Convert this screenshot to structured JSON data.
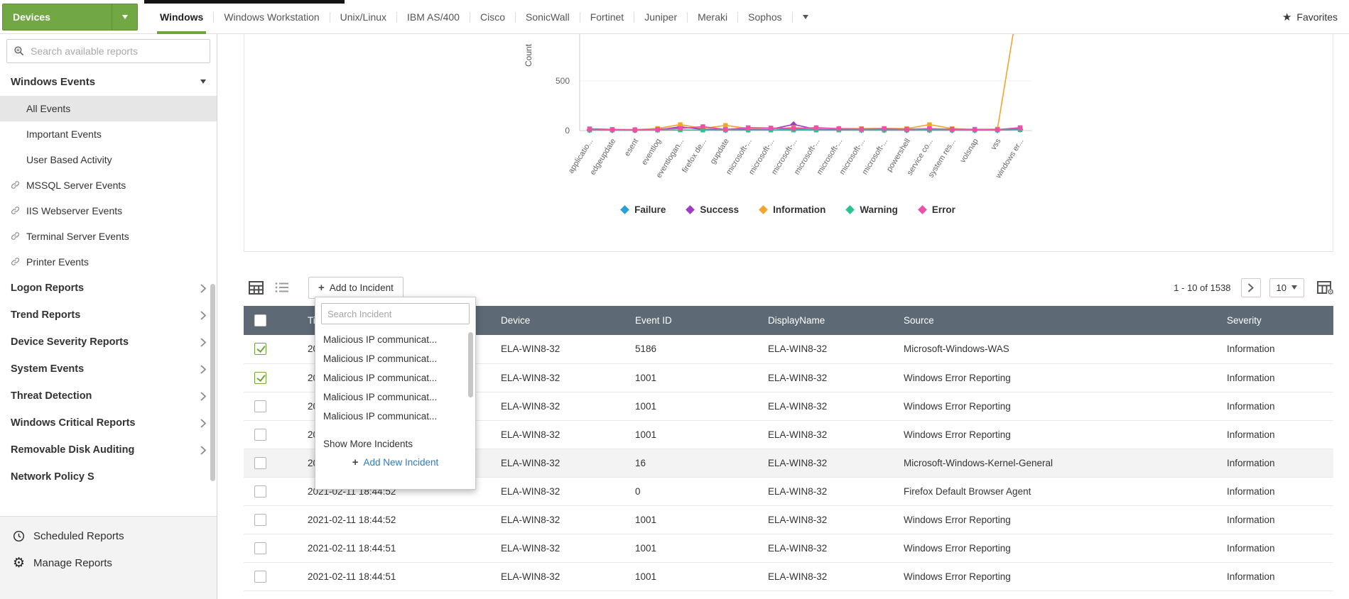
{
  "topbar": {
    "devices_button": "Devices",
    "tabs": [
      "Windows",
      "Windows Workstation",
      "Unix/Linux",
      "IBM AS/400",
      "Cisco",
      "SonicWall",
      "Fortinet",
      "Juniper",
      "Meraki",
      "Sophos"
    ],
    "active_tab": "Windows",
    "favorites": "Favorites"
  },
  "sidebar": {
    "search_placeholder": "Search available reports",
    "section_title": "Windows Events",
    "items": [
      {
        "label": "All Events",
        "selected": true,
        "linked": false
      },
      {
        "label": "Important Events",
        "selected": false,
        "linked": false
      },
      {
        "label": "User Based Activity",
        "selected": false,
        "linked": false
      },
      {
        "label": "MSSQL Server Events",
        "selected": false,
        "linked": true
      },
      {
        "label": "IIS Webserver Events",
        "selected": false,
        "linked": true
      },
      {
        "label": "Terminal Server Events",
        "selected": false,
        "linked": true
      },
      {
        "label": "Printer Events",
        "selected": false,
        "linked": true
      }
    ],
    "groups": [
      {
        "label": "Logon Reports"
      },
      {
        "label": "Trend Reports"
      },
      {
        "label": "Device Severity Reports"
      },
      {
        "label": "System Events"
      },
      {
        "label": "Threat Detection"
      },
      {
        "label": "Windows Critical Reports"
      },
      {
        "label": "Removable Disk Auditing"
      },
      {
        "label": "Network Policy S"
      }
    ],
    "footer": {
      "scheduled": "Scheduled Reports",
      "manage": "Manage Reports"
    }
  },
  "chart_data": {
    "type": "line",
    "title": "",
    "xlabel": "",
    "ylabel": "Count",
    "yticks": [
      0,
      500
    ],
    "grid": false,
    "legend_position": "bottom",
    "categories": [
      "applicatio...",
      "edgeupdate",
      "esent",
      "eventlog",
      "eventlogan...",
      "firefox de...",
      "gupdate",
      "microsoft-...",
      "microsoft-...",
      "microsoft-...",
      "microsoft-...",
      "microsoft-...",
      "microsoft-...",
      "microsoft-...",
      "powershell",
      "service co...",
      "system res...",
      "volsnap",
      "vss",
      "windows er..."
    ],
    "series": [
      {
        "name": "Failure",
        "color": "#2a9fd8",
        "values": [
          18,
          12,
          10,
          14,
          26,
          30,
          12,
          16,
          20,
          12,
          14,
          10,
          12,
          16,
          10,
          12,
          10,
          14,
          10,
          22
        ]
      },
      {
        "name": "Success",
        "color": "#9d3cc4",
        "values": [
          6,
          5,
          5,
          8,
          38,
          12,
          6,
          10,
          14,
          62,
          12,
          16,
          6,
          6,
          5,
          6,
          5,
          5,
          5,
          12
        ]
      },
      {
        "name": "Information",
        "color": "#f2a52d",
        "values": [
          12,
          10,
          10,
          22,
          60,
          22,
          52,
          22,
          20,
          30,
          22,
          20,
          20,
          22,
          20,
          60,
          20,
          12,
          16,
          1400
        ]
      },
      {
        "name": "Warning",
        "color": "#2bc490",
        "values": [
          5,
          5,
          4,
          5,
          6,
          5,
          5,
          5,
          5,
          5,
          5,
          5,
          5,
          5,
          5,
          5,
          5,
          5,
          5,
          8
        ]
      },
      {
        "name": "Error",
        "color": "#ef4fa6",
        "values": [
          16,
          10,
          6,
          12,
          22,
          40,
          12,
          30,
          26,
          20,
          30,
          20,
          16,
          20,
          14,
          20,
          14,
          10,
          10,
          30
        ]
      }
    ]
  },
  "toolbar": {
    "add_to_incident": "Add to Incident",
    "pagination": "1 - 10 of 1538",
    "page_size": "10"
  },
  "incident_dropdown": {
    "search_placeholder": "Search Incident",
    "items": [
      "Malicious IP communicat...",
      "Malicious IP communicat...",
      "Malicious IP communicat...",
      "Malicious IP communicat...",
      "Malicious IP communicat..."
    ],
    "show_more": "Show More Incidents",
    "add_new": "Add New Incident"
  },
  "table": {
    "columns": [
      "Time",
      "Device",
      "Event ID",
      "DisplayName",
      "Source",
      "Severity"
    ],
    "rows": [
      {
        "time": "2021-02-11 18:44:53",
        "device": "ELA-WIN8-32",
        "event_id": "5186",
        "display_name": "ELA-WIN8-32",
        "source": "Microsoft-Windows-WAS",
        "severity": "Information",
        "checked": true,
        "highlight": false
      },
      {
        "time": "2021-02-11 18:44:53",
        "device": "ELA-WIN8-32",
        "event_id": "1001",
        "display_name": "ELA-WIN8-32",
        "source": "Windows Error Reporting",
        "severity": "Information",
        "checked": true,
        "highlight": false
      },
      {
        "time": "2021-02-11 18:44:52",
        "device": "ELA-WIN8-32",
        "event_id": "1001",
        "display_name": "ELA-WIN8-32",
        "source": "Windows Error Reporting",
        "severity": "Information",
        "checked": false,
        "highlight": false
      },
      {
        "time": "2021-02-11 18:44:52",
        "device": "ELA-WIN8-32",
        "event_id": "1001",
        "display_name": "ELA-WIN8-32",
        "source": "Windows Error Reporting",
        "severity": "Information",
        "checked": false,
        "highlight": false
      },
      {
        "time": "2021-02-11 18:44:52",
        "device": "ELA-WIN8-32",
        "event_id": "16",
        "display_name": "ELA-WIN8-32",
        "source": "Microsoft-Windows-Kernel-General",
        "severity": "Information",
        "checked": false,
        "highlight": true
      },
      {
        "time": "2021-02-11 18:44:52",
        "device": "ELA-WIN8-32",
        "event_id": "0",
        "display_name": "ELA-WIN8-32",
        "source": "Firefox Default Browser Agent",
        "severity": "Information",
        "checked": false,
        "highlight": false
      },
      {
        "time": "2021-02-11 18:44:52",
        "device": "ELA-WIN8-32",
        "event_id": "1001",
        "display_name": "ELA-WIN8-32",
        "source": "Windows Error Reporting",
        "severity": "Information",
        "checked": false,
        "highlight": false
      },
      {
        "time": "2021-02-11 18:44:51",
        "device": "ELA-WIN8-32",
        "event_id": "1001",
        "display_name": "ELA-WIN8-32",
        "source": "Windows Error Reporting",
        "severity": "Information",
        "checked": false,
        "highlight": false
      },
      {
        "time": "2021-02-11 18:44:51",
        "device": "ELA-WIN8-32",
        "event_id": "1001",
        "display_name": "ELA-WIN8-32",
        "source": "Windows Error Reporting",
        "severity": "Information",
        "checked": false,
        "highlight": false
      },
      {
        "time": "",
        "device": "",
        "event_id": "",
        "display_name": "",
        "source": "",
        "severity": "",
        "checked": false,
        "highlight": false
      }
    ]
  },
  "colors": {
    "accent_green": "#6fa63c",
    "table_header": "#5d6974",
    "link_blue": "#2b7cc2"
  }
}
